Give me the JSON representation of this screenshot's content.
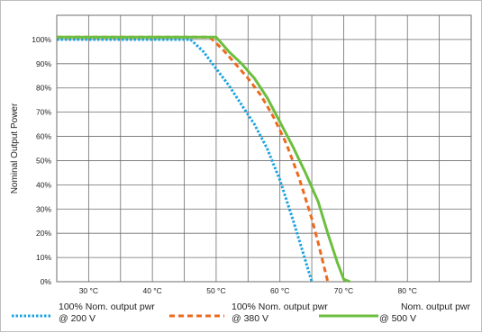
{
  "chart_data": {
    "type": "line",
    "title": "",
    "xlabel": "",
    "ylabel": "Nominal Output Power",
    "xlim": [
      25,
      90
    ],
    "ylim": [
      0,
      110
    ],
    "x_ticks": [
      30,
      40,
      50,
      60,
      70,
      80
    ],
    "x_tick_labels": [
      "30 °C",
      "40 °C",
      "50 °C",
      "60 °C",
      "70 °C",
      "80 °C"
    ],
    "y_ticks": [
      0,
      10,
      20,
      30,
      40,
      50,
      60,
      70,
      80,
      90,
      100
    ],
    "y_tick_labels": [
      "0%",
      "10%",
      "20%",
      "30%",
      "40%",
      "50%",
      "60%",
      "70%",
      "80%",
      "90%",
      "100%"
    ],
    "grid": true,
    "legend_position": "bottom",
    "series": [
      {
        "name_lines": [
          "100% Nom. output pwr",
          "@ 200 V"
        ],
        "color": "#1ba3e0",
        "dash": "dotted",
        "points": [
          [
            25,
            100
          ],
          [
            46,
            100
          ],
          [
            48,
            95
          ],
          [
            50,
            88
          ],
          [
            52,
            81
          ],
          [
            54,
            73
          ],
          [
            56,
            65
          ],
          [
            58,
            55
          ],
          [
            60,
            42
          ],
          [
            62,
            26
          ],
          [
            63.5,
            13
          ],
          [
            65,
            0
          ]
        ]
      },
      {
        "name_lines": [
          "100% Nom. output pwr",
          "@ 380 V"
        ],
        "color": "#ec6a1e",
        "dash": "dashed",
        "points": [
          [
            25,
            101
          ],
          [
            49,
            101
          ],
          [
            51,
            96
          ],
          [
            53,
            90
          ],
          [
            55,
            84
          ],
          [
            57,
            77
          ],
          [
            59,
            68
          ],
          [
            61,
            57
          ],
          [
            63,
            43
          ],
          [
            65,
            26
          ],
          [
            66,
            16
          ],
          [
            67.5,
            0
          ]
        ]
      },
      {
        "name_lines": [
          "Nom. output pwr",
          "@ 500 V"
        ],
        "color": "#6cbf3e",
        "dash": "solid",
        "points": [
          [
            25,
            101
          ],
          [
            50,
            101
          ],
          [
            52,
            95
          ],
          [
            54,
            90
          ],
          [
            56,
            84
          ],
          [
            58,
            76
          ],
          [
            60,
            66
          ],
          [
            62,
            56
          ],
          [
            64,
            45
          ],
          [
            66,
            33
          ],
          [
            67.5,
            20
          ],
          [
            69,
            8
          ],
          [
            70,
            1
          ],
          [
            71,
            0
          ]
        ]
      }
    ]
  }
}
